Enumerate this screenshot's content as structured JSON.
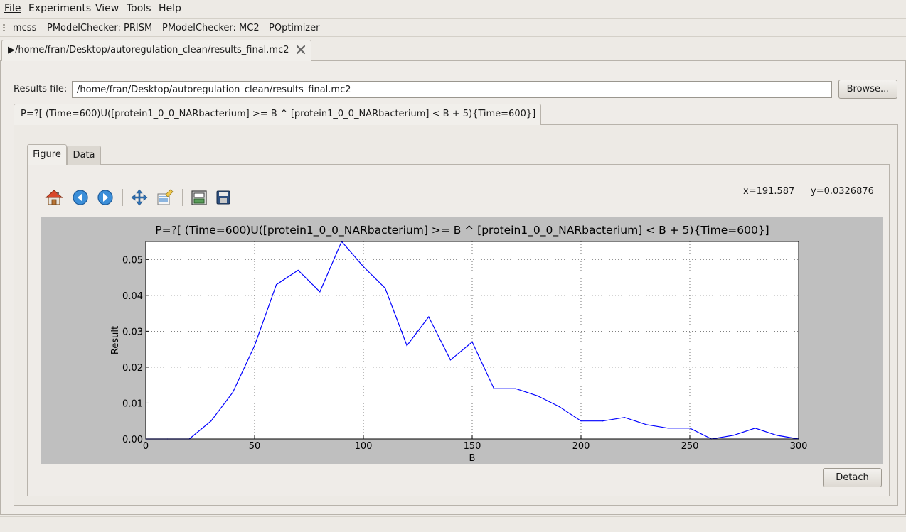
{
  "menubar": {
    "items": [
      {
        "label_ul": "F",
        "label_rest": "ile"
      },
      {
        "label_ul": "",
        "label_pre": "E",
        "label_ul2": "x",
        "label_rest": "periments"
      },
      {
        "label_ul": "V",
        "label_rest": "iew"
      },
      {
        "label_ul": "T",
        "label_rest": "ools"
      },
      {
        "label_ul": "H",
        "label_rest": "elp"
      }
    ],
    "file": "File",
    "experiments": "Experiments",
    "view": "View",
    "tools": "Tools",
    "help": "Help"
  },
  "toolbar": {
    "items": [
      "mcss",
      "PModelChecker: PRISM",
      "PModelChecker: MC2",
      "POptimizer"
    ]
  },
  "doc_tab": {
    "label": "▶/home/fran/Desktop/autoregulation_clean/results_final.mc2"
  },
  "results": {
    "label": "Results file:",
    "value": "/home/fran/Desktop/autoregulation_clean/results_final.mc2",
    "browse_label": "Browse..."
  },
  "property_tab": {
    "label": "P=?[ (Time=600)U([protein1_0_0_NARbacterium] >= B ^ [protein1_0_0_NARbacterium] < B + 5){Time=600}]"
  },
  "inner_tabs": {
    "figure": "Figure",
    "data": "Data"
  },
  "coords": {
    "x": "x=191.587",
    "y": "y=0.0326876"
  },
  "icons": [
    "home-icon",
    "back-icon",
    "forward-icon",
    "pan-icon",
    "subplots-icon",
    "configure-icon",
    "save-icon"
  ],
  "detach_label": "Detach",
  "chart_data": {
    "type": "line",
    "title": "P=?[ (Time=600)U([protein1_0_0_NARbacterium] >= B ^ [protein1_0_0_NARbacterium] < B + 5){Time=600}]",
    "xlabel": "B",
    "ylabel": "Result",
    "xlim": [
      0,
      300
    ],
    "ylim": [
      0,
      0.055
    ],
    "xticks": [
      "0",
      "50",
      "100",
      "150",
      "200",
      "250",
      "300"
    ],
    "yticks": [
      "0.00",
      "0.01",
      "0.02",
      "0.03",
      "0.04",
      "0.05"
    ],
    "grid": true,
    "line_color": "#0000ff",
    "x": [
      0,
      10,
      20,
      30,
      40,
      50,
      60,
      70,
      80,
      90,
      100,
      110,
      120,
      130,
      140,
      150,
      160,
      170,
      180,
      190,
      200,
      210,
      220,
      230,
      240,
      250,
      260,
      270,
      280,
      290,
      300
    ],
    "values": [
      0,
      0,
      0,
      0.005,
      0.013,
      0.026,
      0.043,
      0.047,
      0.041,
      0.055,
      0.048,
      0.042,
      0.026,
      0.034,
      0.022,
      0.027,
      0.014,
      0.014,
      0.012,
      0.009,
      0.005,
      0.005,
      0.006,
      0.004,
      0.003,
      0.003,
      0,
      0.001,
      0.003,
      0.001,
      0
    ]
  }
}
